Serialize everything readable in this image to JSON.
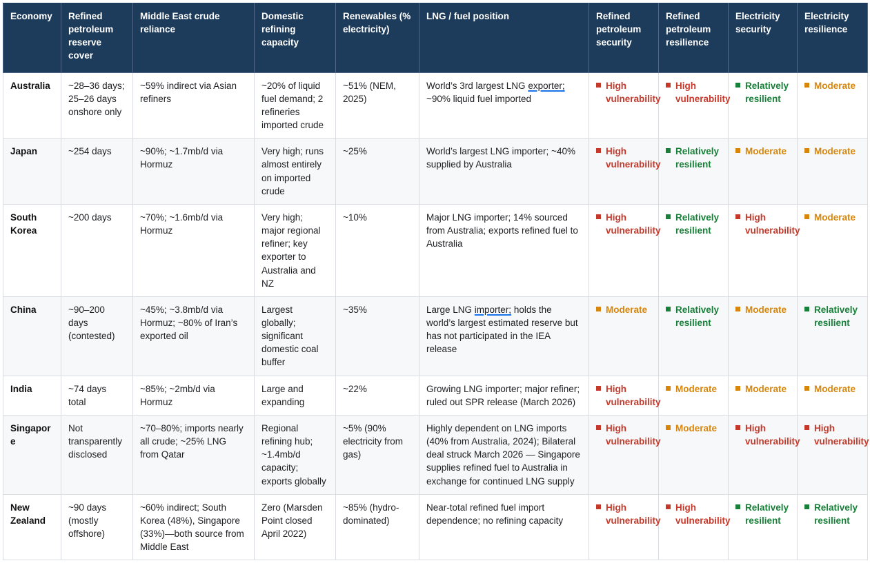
{
  "colors": {
    "header_bg": "#1d3b5a",
    "high_vulnerability": "#c5392b",
    "relatively_resilient": "#188038",
    "moderate": "#d8860b",
    "link_underline": "#1a73e8"
  },
  "table": {
    "columns": [
      {
        "label": "Economy"
      },
      {
        "label": "Refined petroleum reserve cover"
      },
      {
        "label": "Middle East crude reliance"
      },
      {
        "label": "Domestic refining capacity"
      },
      {
        "label": "Renewables (% electricity)"
      },
      {
        "label": "LNG / fuel position"
      },
      {
        "label": "Refined petroleum security"
      },
      {
        "label": "Refined petroleum resilience"
      },
      {
        "label": "Electricity security"
      },
      {
        "label": "Electricity resilience"
      }
    ],
    "rows": [
      {
        "economy": "Australia",
        "reserve": "~28–36 days; 25–26 days onshore only",
        "mideast": "~59% indirect via Asian refiners",
        "refining": "~20% of liquid fuel demand; 2 refineries imported crude",
        "renewables": "~51% (NEM, 2025)",
        "lng": [
          {
            "text": "World’s 3rd largest LNG "
          },
          {
            "text": "exporter;",
            "underline": true
          },
          {
            "text": " ~90% liquid fuel imported"
          }
        ],
        "statuses": [
          {
            "label": "High vulnerability",
            "level": "red"
          },
          {
            "label": "High vulnerability",
            "level": "red"
          },
          {
            "label": "Relatively resilient",
            "level": "green"
          },
          {
            "label": "Moderate",
            "level": "orange"
          }
        ]
      },
      {
        "economy": "Japan",
        "reserve": "~254 days",
        "mideast": "~90%; ~1.7mb/d via Hormuz",
        "refining": "Very high; runs almost entirely on imported crude",
        "renewables": "~25%",
        "lng": [
          {
            "text": "World’s largest LNG importer; ~40% supplied by Australia"
          }
        ],
        "statuses": [
          {
            "label": "High vulnerability",
            "level": "red"
          },
          {
            "label": "Relatively resilient",
            "level": "green"
          },
          {
            "label": "Moderate",
            "level": "orange"
          },
          {
            "label": "Moderate",
            "level": "orange"
          }
        ]
      },
      {
        "economy": "South Korea",
        "reserve": "~200 days",
        "mideast": "~70%; ~1.6mb/d via Hormuz",
        "refining": "Very high; major regional refiner; key exporter to Australia and NZ",
        "renewables": "~10%",
        "lng": [
          {
            "text": "Major LNG importer; 14% sourced from Australia; exports refined fuel to Australia"
          }
        ],
        "statuses": [
          {
            "label": "High vulnerability",
            "level": "red"
          },
          {
            "label": "Relatively resilient",
            "level": "green"
          },
          {
            "label": "High vulnerability",
            "level": "red"
          },
          {
            "label": "Moderate",
            "level": "orange"
          }
        ]
      },
      {
        "economy": "China",
        "reserve": "~90–200 days (contested)",
        "mideast": "~45%; ~3.8mb/d via Hormuz; ~80% of Iran’s exported oil",
        "refining": "Largest globally; significant domestic coal buffer",
        "renewables": "~35%",
        "lng": [
          {
            "text": "Large LNG "
          },
          {
            "text": "importer;",
            "underline": true
          },
          {
            "text": " holds the world’s largest estimated reserve but has not participated in the IEA release"
          }
        ],
        "statuses": [
          {
            "label": "Moderate",
            "level": "orange"
          },
          {
            "label": "Relatively resilient",
            "level": "green"
          },
          {
            "label": "Moderate",
            "level": "orange"
          },
          {
            "label": "Relatively resilient",
            "level": "green"
          }
        ]
      },
      {
        "economy": "India",
        "reserve": "~74 days total",
        "mideast": "~85%; ~2mb/d via Hormuz",
        "refining": "Large and expanding",
        "renewables": "~22%",
        "lng": [
          {
            "text": "Growing LNG importer; major refiner; ruled out SPR release (March 2026)"
          }
        ],
        "statuses": [
          {
            "label": "High vulnerability",
            "level": "red"
          },
          {
            "label": "Moderate",
            "level": "orange"
          },
          {
            "label": "Moderate",
            "level": "orange"
          },
          {
            "label": "Moderate",
            "level": "orange"
          }
        ]
      },
      {
        "economy": "Singapore",
        "reserve": "Not transparently disclosed",
        "mideast": "~70–80%; imports nearly all crude; ~25% LNG from Qatar",
        "refining": "Regional refining hub; ~1.4mb/d capacity; exports globally",
        "renewables": "~5% (90% electricity from gas)",
        "lng": [
          {
            "text": "Highly dependent on LNG imports (40% from Australia, 2024); Bilateral deal struck March 2026 — Singapore supplies refined fuel to Australia in exchange for continued LNG supply"
          }
        ],
        "statuses": [
          {
            "label": "High vulnerability",
            "level": "red"
          },
          {
            "label": "Moderate",
            "level": "orange"
          },
          {
            "label": "High vulnerability",
            "level": "red"
          },
          {
            "label": "High vulnerability",
            "level": "red"
          }
        ]
      },
      {
        "economy": "New Zealand",
        "reserve": "~90 days (mostly offshore)",
        "mideast": "~60% indirect; South Korea (48%), Singapore (33%)—both source from Middle East",
        "refining": "Zero (Marsden Point closed April 2022)",
        "renewables": "~85% (hydro-dominated)",
        "lng": [
          {
            "text": "Near-total refined fuel import dependence; no refining capacity"
          }
        ],
        "statuses": [
          {
            "label": "High vulnerability",
            "level": "red"
          },
          {
            "label": "High vulnerability",
            "level": "red"
          },
          {
            "label": "Relatively resilient",
            "level": "green"
          },
          {
            "label": "Relatively resilient",
            "level": "green"
          }
        ]
      }
    ]
  }
}
